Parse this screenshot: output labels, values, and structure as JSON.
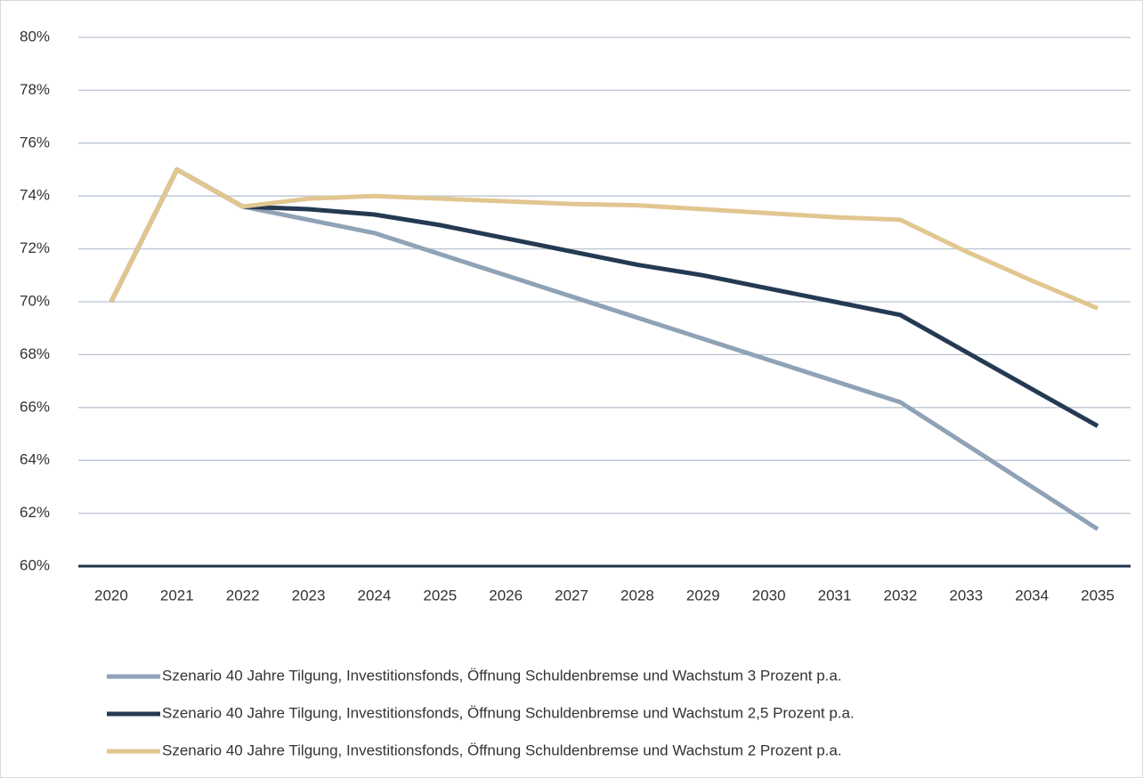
{
  "chart_data": {
    "type": "line",
    "categories": [
      "2020",
      "2021",
      "2022",
      "2023",
      "2024",
      "2025",
      "2026",
      "2027",
      "2028",
      "2029",
      "2030",
      "2031",
      "2032",
      "2033",
      "2034",
      "2035"
    ],
    "series": [
      {
        "name": "Szenario 40 Jahre Tilgung, Investitionsfonds, Öffnung Schuldenbremse und Wachstum 3 Prozent p.a.",
        "color": "#8fa2b6",
        "values": [
          70,
          75,
          73.6,
          73.1,
          72.6,
          71.8,
          71.0,
          70.2,
          69.4,
          68.6,
          67.8,
          67.0,
          66.2,
          64.6,
          63.0,
          61.4
        ]
      },
      {
        "name": "Szenario 40 Jahre Tilgung, Investitionsfonds, Öffnung Schuldenbremse und Wachstum 2,5 Prozent p.a.",
        "color": "#243a52",
        "values": [
          70,
          75,
          73.6,
          73.5,
          73.3,
          72.9,
          72.4,
          71.9,
          71.4,
          71.0,
          70.5,
          70.0,
          69.5,
          68.1,
          66.7,
          65.3
        ]
      },
      {
        "name": "Szenario 40 Jahre Tilgung, Investitionsfonds, Öffnung Schuldenbremse und Wachstum 2 Prozent p.a.",
        "color": "#e2c690",
        "values": [
          70,
          75,
          73.6,
          73.9,
          74.0,
          73.9,
          73.8,
          73.7,
          73.65,
          73.5,
          73.35,
          73.2,
          73.1,
          71.9,
          70.8,
          69.75
        ]
      }
    ],
    "ylim": [
      60,
      80
    ],
    "yticks": [
      {
        "value": 60,
        "label": "60%"
      },
      {
        "value": 62,
        "label": "62%"
      },
      {
        "value": 64,
        "label": "64%"
      },
      {
        "value": 66,
        "label": "66%"
      },
      {
        "value": 68,
        "label": "68%"
      },
      {
        "value": 70,
        "label": "70%"
      },
      {
        "value": 72,
        "label": "72%"
      },
      {
        "value": 74,
        "label": "74%"
      },
      {
        "value": 76,
        "label": "76%"
      },
      {
        "value": 78,
        "label": "78%"
      },
      {
        "value": 80,
        "label": "80%"
      }
    ],
    "grid": true,
    "legend": "bottom"
  }
}
